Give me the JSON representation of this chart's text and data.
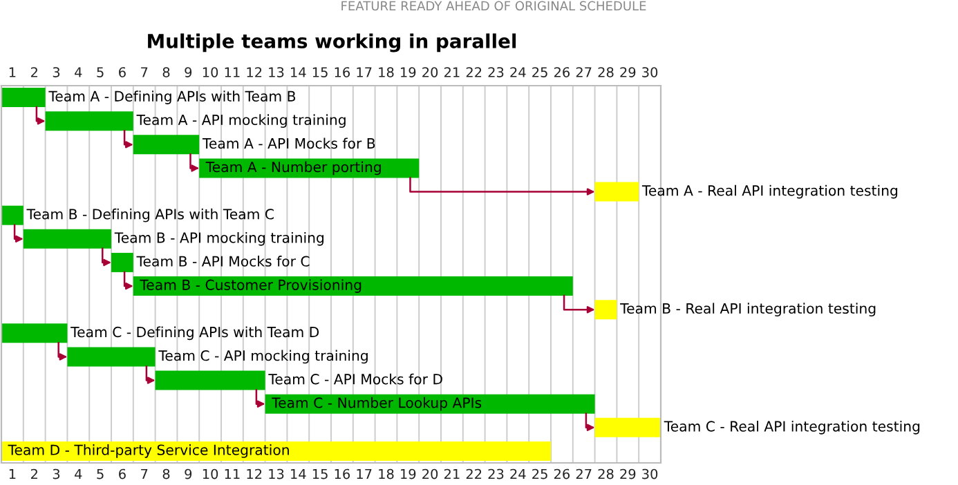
{
  "chart_data": {
    "type": "bar",
    "orientation": "horizontal",
    "title": "Multiple teams working in parallel",
    "annotations": [
      "FEATURE READY AHEAD OF ORIGINAL SCHEDULE"
    ],
    "categories": [
      null,
      null,
      null,
      null,
      null,
      null,
      null,
      null,
      null,
      null,
      null,
      null,
      null,
      null,
      null,
      null
    ],
    "value_labels": [
      "Team A - Defining APIs with Team B",
      "Team A - API mocking training",
      "Team A - API Mocks for B",
      "Team A - Number porting",
      "Team A - Real API integration testing",
      "Team B - Defining APIs with Team C",
      "Team B - API mocking training",
      "Team B - API Mocks for C",
      "Team B - Customer Provisioning",
      "Team B - Real API integration testing",
      "Team C - Defining APIs with Team D",
      "Team C - API mocking training",
      "Team C - API Mocks for D",
      "Team C - Number Lookup APIs",
      "Team C - Real API integration testing",
      "Team D - Third-party Service Integration"
    ],
    "base": [
      0,
      2,
      6,
      9,
      27,
      0,
      1,
      5,
      6,
      27,
      0,
      3,
      7,
      12,
      27,
      0
    ],
    "values": [
      2,
      4,
      3,
      10,
      2,
      1,
      4,
      1,
      20,
      1,
      3,
      4,
      5,
      15,
      3,
      25
    ],
    "colors": [
      "#00b800",
      "#00b800",
      "#00b800",
      "#00b800",
      "#ffff00",
      "#00b800",
      "#00b800",
      "#00b800",
      "#00b800",
      "#ffff00",
      "#00b800",
      "#00b800",
      "#00b800",
      "#00b800",
      "#ffff00",
      "#ffff00"
    ],
    "xlim": [
      0,
      30
    ],
    "xticks": [
      {
        "value": 0.5,
        "label": "1"
      },
      {
        "value": 1.5,
        "label": "2"
      },
      {
        "value": 2.5,
        "label": "3"
      },
      {
        "value": 3.5,
        "label": "4"
      },
      {
        "value": 4.5,
        "label": "5"
      },
      {
        "value": 5.5,
        "label": "6"
      },
      {
        "value": 6.5,
        "label": "7"
      },
      {
        "value": 7.5,
        "label": "8"
      },
      {
        "value": 8.5,
        "label": "9"
      },
      {
        "value": 9.5,
        "label": "10"
      },
      {
        "value": 10.5,
        "label": "11"
      },
      {
        "value": 11.5,
        "label": "12"
      },
      {
        "value": 12.5,
        "label": "13"
      },
      {
        "value": 13.5,
        "label": "14"
      },
      {
        "value": 14.5,
        "label": "15"
      },
      {
        "value": 15.5,
        "label": "16"
      },
      {
        "value": 16.5,
        "label": "17"
      },
      {
        "value": 17.5,
        "label": "18"
      },
      {
        "value": 18.5,
        "label": "19"
      },
      {
        "value": 19.5,
        "label": "20"
      },
      {
        "value": 20.5,
        "label": "21"
      },
      {
        "value": 21.5,
        "label": "22"
      },
      {
        "value": 22.5,
        "label": "23"
      },
      {
        "value": 23.5,
        "label": "24"
      },
      {
        "value": 24.5,
        "label": "25"
      },
      {
        "value": 25.5,
        "label": "26"
      },
      {
        "value": 26.5,
        "label": "27"
      },
      {
        "value": 27.5,
        "label": "28"
      },
      {
        "value": 28.5,
        "label": "29"
      },
      {
        "value": 29.5,
        "label": "30"
      }
    ],
    "grid": true,
    "tick_labels": "x"
  }
}
